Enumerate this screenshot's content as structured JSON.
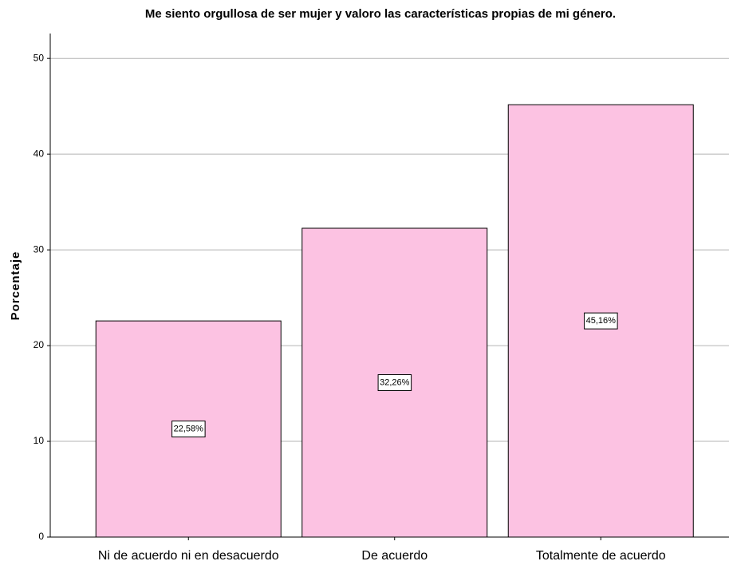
{
  "chart_data": {
    "type": "bar",
    "title": "Me siento orgullosa de ser mujer y valoro las características propias de mi género.",
    "y_label": "Porcentaje",
    "categories": [
      "Ni de acuerdo ni en desacuerdo",
      "De acuerdo",
      "Totalmente de acuerdo"
    ],
    "values": [
      22.58,
      32.26,
      45.16
    ],
    "value_labels": [
      "22,58%",
      "32,26%",
      "45,16%"
    ],
    "color": "#fcc2e2",
    "ylim": [
      0,
      52.6
    ],
    "yticks": [
      0,
      10,
      20,
      30,
      40,
      50
    ],
    "grid": true
  }
}
